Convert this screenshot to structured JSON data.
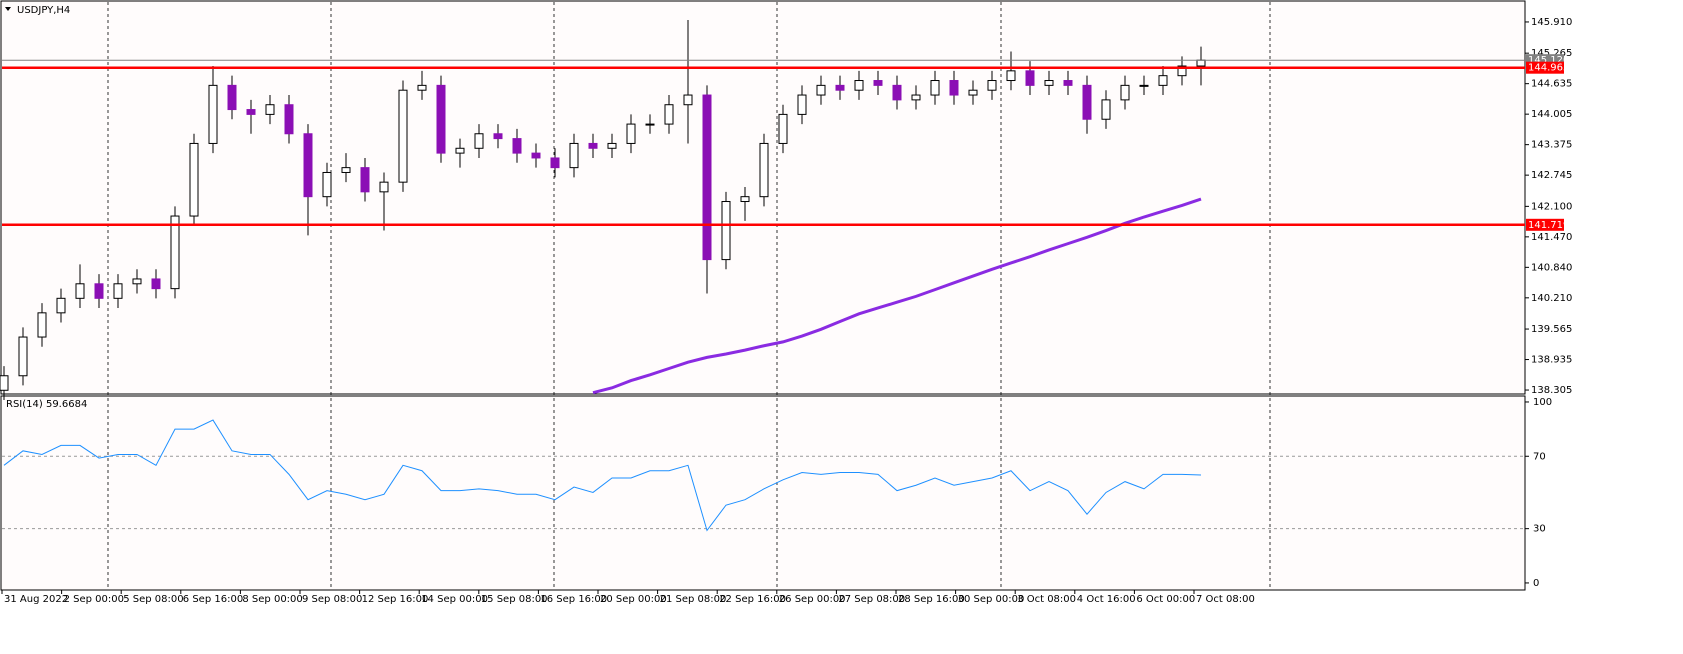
{
  "chart_data": [
    {
      "type": "candlestick",
      "title": "USDJPY,H4",
      "open": [
        138.3,
        138.6,
        139.4,
        139.9,
        140.2,
        140.5,
        140.2,
        140.5,
        140.6,
        140.4,
        141.9,
        143.4,
        144.6,
        144.1,
        144.0,
        144.2,
        143.6,
        142.3,
        142.8,
        142.9,
        142.4,
        142.6,
        144.5,
        144.6,
        143.2,
        143.3,
        143.6,
        143.5,
        143.2,
        143.1,
        142.9,
        143.4,
        143.3,
        143.4,
        143.8,
        143.8,
        144.2,
        144.4,
        141.0,
        142.2,
        142.3,
        143.4,
        144.0,
        144.4,
        144.6,
        144.5,
        144.7,
        144.6,
        144.3,
        144.4,
        144.7,
        144.4,
        144.5,
        144.7,
        144.9,
        144.6,
        144.7,
        144.6,
        143.9,
        144.3,
        144.6,
        144.6,
        144.8,
        145.0
      ],
      "high": [
        138.8,
        139.6,
        140.1,
        140.4,
        140.9,
        140.7,
        140.7,
        140.8,
        140.8,
        142.1,
        143.6,
        145.0,
        144.8,
        144.3,
        144.4,
        144.4,
        143.8,
        143.0,
        143.2,
        143.1,
        142.8,
        144.7,
        144.9,
        144.8,
        143.5,
        143.8,
        143.8,
        143.7,
        143.4,
        143.3,
        143.6,
        143.6,
        143.6,
        144.0,
        144.0,
        144.4,
        145.95,
        144.6,
        142.4,
        142.5,
        143.6,
        144.2,
        144.6,
        144.8,
        144.8,
        144.9,
        144.9,
        144.8,
        144.6,
        144.9,
        144.9,
        144.7,
        144.9,
        145.3,
        145.1,
        144.9,
        144.9,
        144.8,
        144.5,
        144.8,
        144.8,
        145.0,
        145.2,
        145.4
      ],
      "low": [
        138.1,
        138.4,
        139.2,
        139.7,
        140.0,
        140.0,
        140.0,
        140.3,
        140.2,
        140.2,
        141.7,
        143.2,
        143.9,
        143.6,
        143.8,
        143.4,
        141.5,
        142.1,
        142.6,
        142.2,
        141.6,
        142.4,
        144.3,
        143.0,
        142.9,
        143.1,
        143.3,
        143.0,
        142.9,
        142.7,
        142.7,
        143.1,
        143.1,
        143.2,
        143.6,
        143.6,
        143.4,
        140.3,
        140.8,
        141.8,
        142.1,
        143.2,
        143.8,
        144.2,
        144.3,
        144.3,
        144.4,
        144.1,
        144.1,
        144.2,
        144.2,
        144.2,
        144.3,
        144.5,
        144.4,
        144.4,
        144.4,
        143.6,
        143.7,
        144.1,
        144.4,
        144.4,
        144.6,
        144.6
      ],
      "close": [
        138.6,
        139.4,
        139.9,
        140.2,
        140.5,
        140.2,
        140.5,
        140.6,
        140.4,
        141.9,
        143.4,
        144.6,
        144.1,
        144.0,
        144.2,
        143.6,
        142.3,
        142.8,
        142.9,
        142.4,
        142.6,
        144.5,
        144.6,
        143.2,
        143.3,
        143.6,
        143.5,
        143.2,
        143.1,
        142.9,
        143.4,
        143.3,
        143.4,
        143.8,
        143.8,
        144.2,
        144.4,
        141.0,
        142.2,
        142.3,
        143.4,
        144.0,
        144.4,
        144.6,
        144.5,
        144.7,
        144.6,
        144.3,
        144.4,
        144.7,
        144.4,
        144.5,
        144.7,
        144.9,
        144.6,
        144.7,
        144.6,
        143.9,
        144.3,
        144.6,
        144.6,
        144.8,
        145.0,
        145.12
      ],
      "up_color": "#ffffff",
      "down_color": "#8b0fb5",
      "ma": {
        "color": "#8a2be2",
        "values": [
          null,
          null,
          null,
          null,
          null,
          null,
          null,
          null,
          null,
          null,
          null,
          null,
          null,
          null,
          null,
          null,
          null,
          null,
          null,
          null,
          null,
          null,
          null,
          null,
          null,
          null,
          null,
          null,
          null,
          null,
          null,
          138.25,
          138.35,
          138.5,
          138.62,
          138.75,
          138.88,
          138.98,
          139.05,
          139.13,
          139.22,
          139.3,
          139.42,
          139.56,
          139.72,
          139.88,
          140.0,
          140.12,
          140.24,
          140.38,
          140.52,
          140.66,
          140.8,
          140.93,
          141.06,
          141.2,
          141.33,
          141.46,
          141.6,
          141.75,
          141.88,
          142.0,
          142.12,
          142.25
        ]
      },
      "ylim": [
        138.223,
        146.343
      ],
      "yticks": [
        {
          "value": 145.91,
          "label": "145.910"
        },
        145.265,
        144.635,
        144.005,
        143.375,
        142.745,
        {
          "value": 142.1,
          "label": "142.100"
        },
        {
          "value": 141.47,
          "label": "141.470"
        },
        {
          "value": 140.84,
          "label": "140.840"
        },
        {
          "value": 140.21,
          "label": "140.210"
        },
        139.565,
        138.935,
        138.305
      ],
      "levels": [
        {
          "value": 145.12,
          "label": "145.120",
          "color": "#808080"
        },
        {
          "value": 144.965,
          "color": "#ff0000"
        },
        {
          "value": 141.719,
          "color": "#ff0000"
        }
      ],
      "x_labels": [
        "31 Aug 2022",
        "2 Sep 00:00",
        "5 Sep 08:00",
        "6 Sep 16:00",
        "8 Sep 00:00",
        "9 Sep 08:00",
        "12 Sep 16:00",
        "14 Sep 00:00",
        "15 Sep 08:00",
        "16 Sep 16:00",
        "20 Sep 00:00",
        "21 Sep 08:00",
        "22 Sep 16:00",
        "26 Sep 00:00",
        "27 Sep 08:00",
        "28 Sep 16:00",
        "30 Sep 00:00",
        "3 Oct 08:00",
        "4 Oct 16:00",
        "6 Oct 00:00",
        "7 Oct 08:00"
      ]
    },
    {
      "type": "line",
      "title": "RSI(14) 59.6684",
      "values": [
        65,
        73,
        71,
        76,
        76,
        69,
        71,
        71,
        65,
        85,
        85,
        90,
        73,
        71,
        71,
        60,
        46,
        51,
        49,
        46,
        49,
        65,
        62,
        51,
        51,
        52,
        51,
        49,
        49,
        46,
        53,
        50,
        58,
        58,
        62,
        62,
        65,
        29,
        43,
        46,
        52,
        57,
        61,
        60,
        61,
        61,
        60,
        51,
        54,
        58,
        54,
        56,
        58,
        62,
        51,
        56,
        51,
        38,
        50,
        56,
        52,
        60,
        60,
        59.6684
      ],
      "color": "#1e90ff",
      "ylim": [
        -3.9,
        103.3
      ],
      "yticks": [
        100,
        70,
        30,
        0
      ],
      "levels": [
        70,
        30
      ]
    }
  ]
}
